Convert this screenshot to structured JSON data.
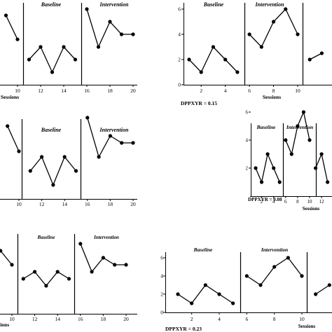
{
  "chart_data": [
    {
      "type": "line",
      "title": "",
      "phases": [
        {
          "label": "",
          "x": [
            9,
            10
          ],
          "y": [
            5.5,
            3.6
          ]
        },
        {
          "label": "Baseline",
          "x": [
            11,
            12,
            13,
            14,
            15
          ],
          "y": [
            2.0,
            3.0,
            1.0,
            3.0,
            2.0
          ]
        },
        {
          "label": "Intervention",
          "x": [
            16,
            17,
            18,
            19,
            20
          ],
          "y": [
            6.0,
            3.0,
            5.0,
            4.0,
            4.0
          ]
        }
      ],
      "xticks": [
        "10",
        "12",
        "14",
        "16",
        "18",
        "20"
      ],
      "xlabel": "Sessions",
      "yticks": [],
      "note": ""
    },
    {
      "type": "line",
      "title": "",
      "phases": [
        {
          "label": "Baseline",
          "x": [
            1,
            2,
            3,
            4,
            5
          ],
          "y": [
            2,
            1,
            3,
            2,
            1
          ]
        },
        {
          "label": "Intervention",
          "x": [
            6,
            7,
            8,
            9,
            10
          ],
          "y": [
            4,
            3,
            5,
            6,
            4
          ]
        },
        {
          "label": "",
          "x": [
            11,
            12
          ],
          "y": [
            2,
            2.5
          ]
        }
      ],
      "xticks": [
        "2",
        "4",
        "6",
        "8",
        "10"
      ],
      "xlabel": "Sessions",
      "yticks": [
        "0",
        "2",
        "4",
        "6"
      ],
      "note": "DPPXYR = 0.15"
    },
    {
      "type": "line",
      "title": "",
      "phases": [
        {
          "label": "",
          "x": [
            9,
            10
          ],
          "y": [
            5.2,
            3.4
          ]
        },
        {
          "label": "Baseline",
          "x": [
            11,
            12,
            13,
            14,
            15
          ],
          "y": [
            2.0,
            3.0,
            1.0,
            3.0,
            2.0
          ]
        },
        {
          "label": "Intervention",
          "x": [
            16,
            17,
            18,
            19,
            20
          ],
          "y": [
            5.8,
            3.0,
            4.5,
            4.0,
            4.0
          ]
        }
      ],
      "xticks": [
        "10",
        "12",
        "14",
        "16",
        "18",
        "20"
      ],
      "xlabel": "",
      "yticks": [],
      "note": ""
    },
    {
      "type": "line",
      "title": "",
      "phases": [
        {
          "label": "Baseline",
          "x": [
            1,
            2,
            3,
            4,
            5
          ],
          "y": [
            2,
            1,
            3,
            2,
            1
          ]
        },
        {
          "label": "Intervention",
          "x": [
            6,
            7,
            8,
            9,
            10
          ],
          "y": [
            4,
            3,
            5,
            6,
            4
          ]
        },
        {
          "label": "",
          "x": [
            11,
            12,
            13
          ],
          "y": [
            2,
            3,
            1
          ]
        }
      ],
      "xticks": [
        "2",
        "4",
        "6",
        "8",
        "10",
        "12"
      ],
      "xlabel": "Sessions",
      "yticks": [
        "2",
        "4",
        "6"
      ],
      "note": "DPPXYR = 0.08"
    },
    {
      "type": "line",
      "title": "",
      "phases": [
        {
          "label": "",
          "x": [
            9,
            10
          ],
          "y": [
            4.5,
            3.5
          ]
        },
        {
          "label": "Baseline",
          "x": [
            11,
            12,
            13,
            14,
            15
          ],
          "y": [
            2.5,
            3.0,
            2.0,
            3.0,
            2.5
          ]
        },
        {
          "label": "Intervention",
          "x": [
            16,
            17,
            18,
            19,
            20
          ],
          "y": [
            5.0,
            3.0,
            4.0,
            3.5,
            3.5
          ]
        }
      ],
      "xticks": [
        "10",
        "12",
        "14",
        "16",
        "18",
        "20"
      ],
      "xlabel": "Sessions",
      "yticks": [],
      "note": ""
    },
    {
      "type": "line",
      "title": "",
      "phases": [
        {
          "label": "Baseline",
          "x": [
            1,
            2,
            3,
            4,
            5
          ],
          "y": [
            2,
            1,
            3,
            2,
            1
          ]
        },
        {
          "label": "Intervention",
          "x": [
            6,
            7,
            8,
            9,
            10
          ],
          "y": [
            4,
            3,
            5,
            6,
            4
          ]
        },
        {
          "label": "",
          "x": [
            11,
            12
          ],
          "y": [
            2,
            3
          ]
        }
      ],
      "xticks": [
        "2",
        "4",
        "6",
        "8",
        "10"
      ],
      "xlabel": "Sessions",
      "yticks": [
        "0",
        "2",
        "4",
        "6"
      ],
      "note": "DPPXYR = 0.23"
    }
  ]
}
